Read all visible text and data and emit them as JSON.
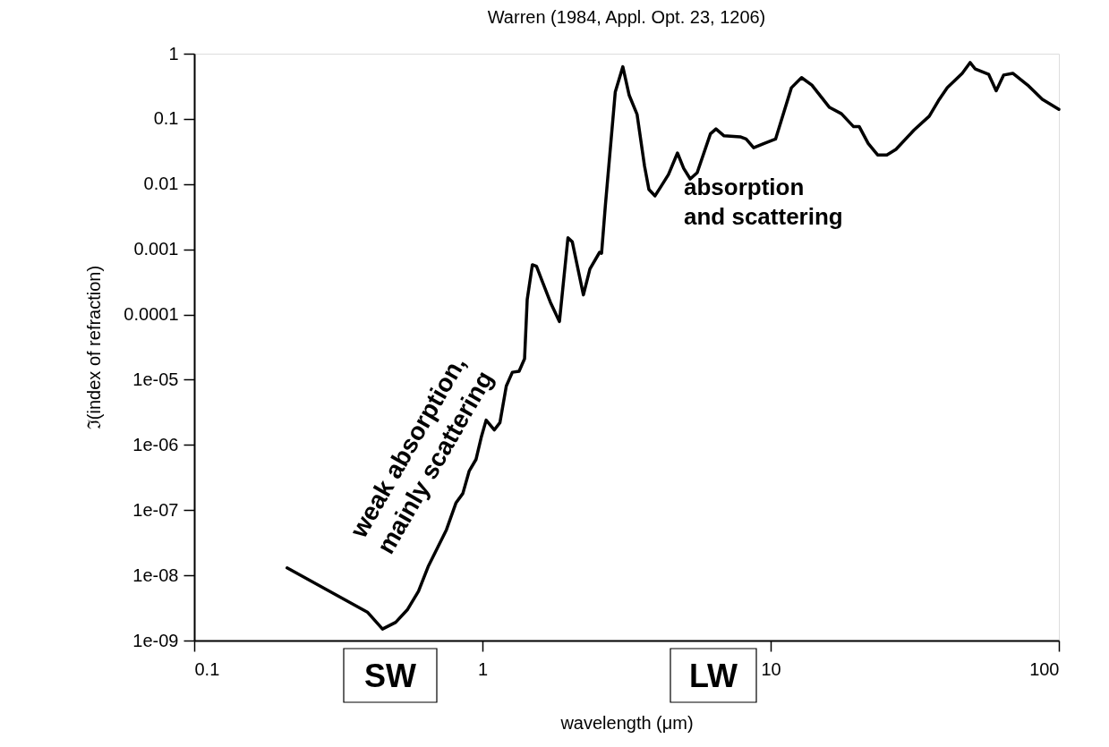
{
  "chart_data": {
    "type": "line",
    "title": "Warren (1984, Appl. Opt. 23, 1206)",
    "xlabel": "wavelength (μm)",
    "ylabel": "ℑ(index of refraction)",
    "log": "xy",
    "grid": false,
    "marker": "none",
    "line_style": "solid",
    "xlim": [
      0.1,
      100
    ],
    "xticks": [
      0.1,
      1,
      10,
      100
    ],
    "ylim": [
      1e-09,
      1
    ],
    "yticks": [
      {
        "value": 1e-09,
        "label": "1e-09"
      },
      {
        "value": 1e-08,
        "label": "1e-08"
      },
      {
        "value": 1e-07,
        "label": "1e-07"
      },
      {
        "value": 1e-06,
        "label": "1e-06"
      },
      {
        "value": 1e-05,
        "label": "1e-05"
      },
      0.0001,
      0.001,
      0.01,
      0.1,
      1
    ],
    "annotations": [
      "weak absorption,\nmainly scattering",
      "absorption\nand scattering",
      "SW",
      "LW"
    ],
    "series": [
      {
        "color": "#000000",
        "x": [
          0.21,
          0.4,
          0.45,
          0.5,
          0.55,
          0.6,
          0.65,
          0.75,
          0.81,
          0.855,
          0.9,
          0.95,
          0.99,
          1.03,
          1.1,
          1.15,
          1.21,
          1.27,
          1.34,
          1.4,
          1.43,
          1.49,
          1.54,
          1.61,
          1.72,
          1.85,
          1.98,
          2.05,
          2.24,
          2.36,
          2.55,
          2.59,
          2.67,
          2.89,
          3.07,
          3.23,
          3.44,
          3.65,
          3.78,
          3.97,
          4.17,
          4.42,
          4.75,
          4.99,
          5.26,
          5.56,
          6.18,
          6.46,
          6.89,
          7.84,
          8.22,
          8.73,
          9.49,
          10.4,
          11.8,
          12.8,
          13.9,
          16.0,
          17.6,
          19.4,
          20.3,
          21.8,
          23.5,
          25.3,
          27.2,
          31.4,
          35.5,
          38.2,
          41.0,
          46.2,
          49.2,
          51.3,
          57.1,
          60.6,
          64.3,
          69.2,
          77.9,
          87.6,
          100
        ],
        "values": [
          1.3e-08,
          2.7e-09,
          1.5e-09,
          1.9e-09,
          3e-09,
          5.7e-09,
          1.4e-08,
          5e-08,
          1.3e-07,
          1.8e-07,
          4e-07,
          6e-07,
          1.3e-06,
          2.4e-06,
          1.7e-06,
          2.2e-06,
          8e-06,
          1.3e-05,
          1.35e-05,
          2.1e-05,
          0.00017,
          0.00058,
          0.00055,
          0.00033,
          0.000155,
          7.8e-05,
          0.0015,
          0.0013,
          0.0002,
          0.0005,
          0.0009,
          0.00087,
          0.0047,
          0.26,
          0.63,
          0.23,
          0.117,
          0.019,
          0.0083,
          0.0066,
          0.0093,
          0.014,
          0.03,
          0.0175,
          0.012,
          0.015,
          0.059,
          0.07,
          0.055,
          0.053,
          0.049,
          0.036,
          0.042,
          0.049,
          0.3,
          0.43,
          0.33,
          0.15,
          0.12,
          0.076,
          0.076,
          0.042,
          0.028,
          0.028,
          0.034,
          0.067,
          0.11,
          0.19,
          0.3,
          0.5,
          0.73,
          0.58,
          0.48,
          0.27,
          0.47,
          0.5,
          0.33,
          0.2,
          0.14
        ]
      }
    ]
  }
}
